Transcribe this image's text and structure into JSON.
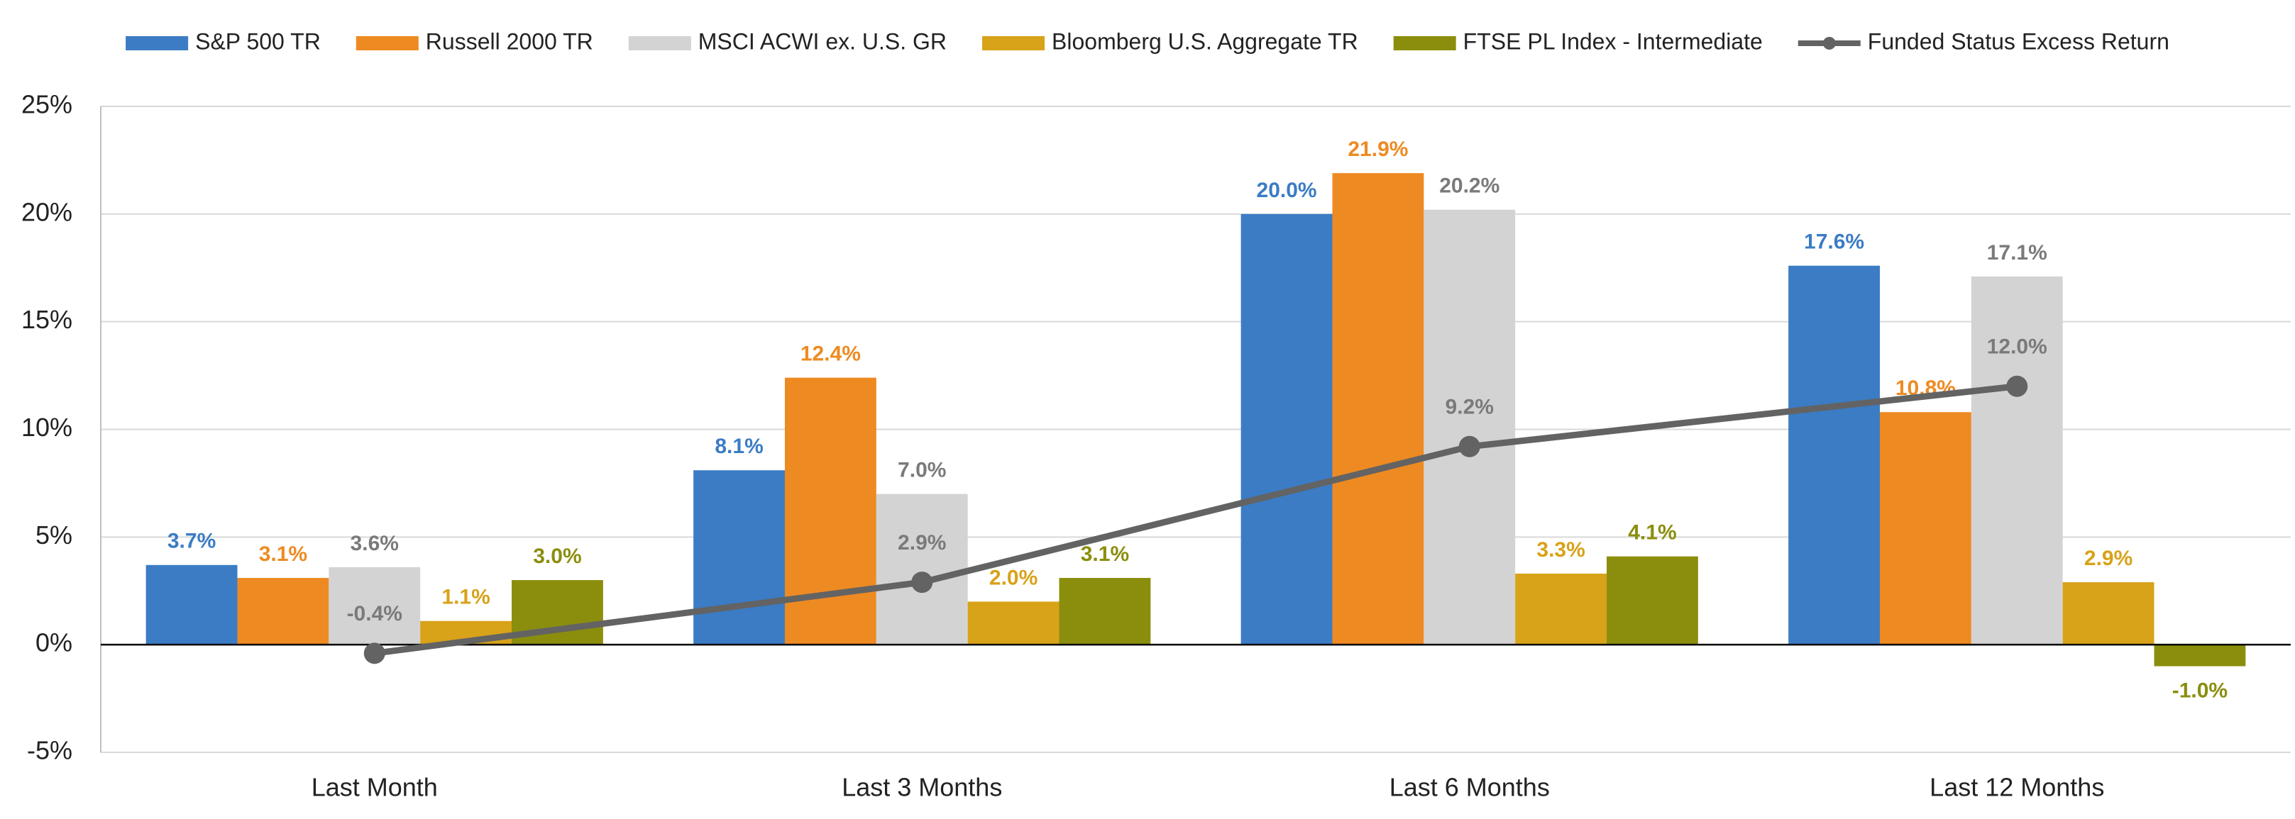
{
  "chart_data": {
    "type": "bar",
    "categories": [
      "Last Month",
      "Last 3 Months",
      "Last 6 Months",
      "Last 12 Months"
    ],
    "series": [
      {
        "name": "S&P 500 TR",
        "color": "#3b7cc4",
        "label_color": "#3b7cc4",
        "values": [
          3.7,
          8.1,
          20.0,
          17.6
        ],
        "value_labels": [
          "3.7%",
          "8.1%",
          "20.0%",
          "17.6%"
        ]
      },
      {
        "name": "Russell 2000 TR",
        "color": "#ee8a22",
        "label_color": "#ee8a22",
        "values": [
          3.1,
          12.4,
          21.9,
          10.8
        ],
        "value_labels": [
          "3.1%",
          "12.4%",
          "21.9%",
          "10.8%"
        ]
      },
      {
        "name": "MSCI ACWI ex. U.S. GR",
        "color": "#d3d3d3",
        "label_color": "#7a7a7a",
        "values": [
          3.6,
          7.0,
          20.2,
          17.1
        ],
        "value_labels": [
          "3.6%",
          "7.0%",
          "20.2%",
          "17.1%"
        ]
      },
      {
        "name": "Bloomberg U.S. Aggregate TR",
        "color": "#d8a219",
        "label_color": "#d8a219",
        "values": [
          1.1,
          2.0,
          3.3,
          2.9
        ],
        "value_labels": [
          "1.1%",
          "2.0%",
          "3.3%",
          "2.9%"
        ]
      },
      {
        "name": "FTSE PL Index - Intermediate",
        "color": "#8b8e0d",
        "label_color": "#8b8e0d",
        "values": [
          3.0,
          3.1,
          4.1,
          -1.0
        ],
        "value_labels": [
          "3.0%",
          "3.1%",
          "4.1%",
          "-1.0%"
        ]
      },
      {
        "name": "Funded Status Excess Return",
        "type": "line",
        "color": "#636363",
        "label_color": "#7a7a7a",
        "values": [
          -0.4,
          2.9,
          9.2,
          12.0
        ],
        "value_labels": [
          "-0.4%",
          "2.9%",
          "9.2%",
          "12.0%"
        ]
      }
    ],
    "ylim": [
      -5,
      25
    ],
    "yticks": [
      {
        "value": -5,
        "label": "-5%"
      },
      {
        "value": 0,
        "label": "0%"
      },
      {
        "value": 5,
        "label": "5%"
      },
      {
        "value": 10,
        "label": "10%"
      },
      {
        "value": 15,
        "label": "15%"
      },
      {
        "value": 20,
        "label": "20%"
      },
      {
        "value": 25,
        "label": "25%"
      }
    ],
    "grid": true,
    "legend": "top"
  }
}
